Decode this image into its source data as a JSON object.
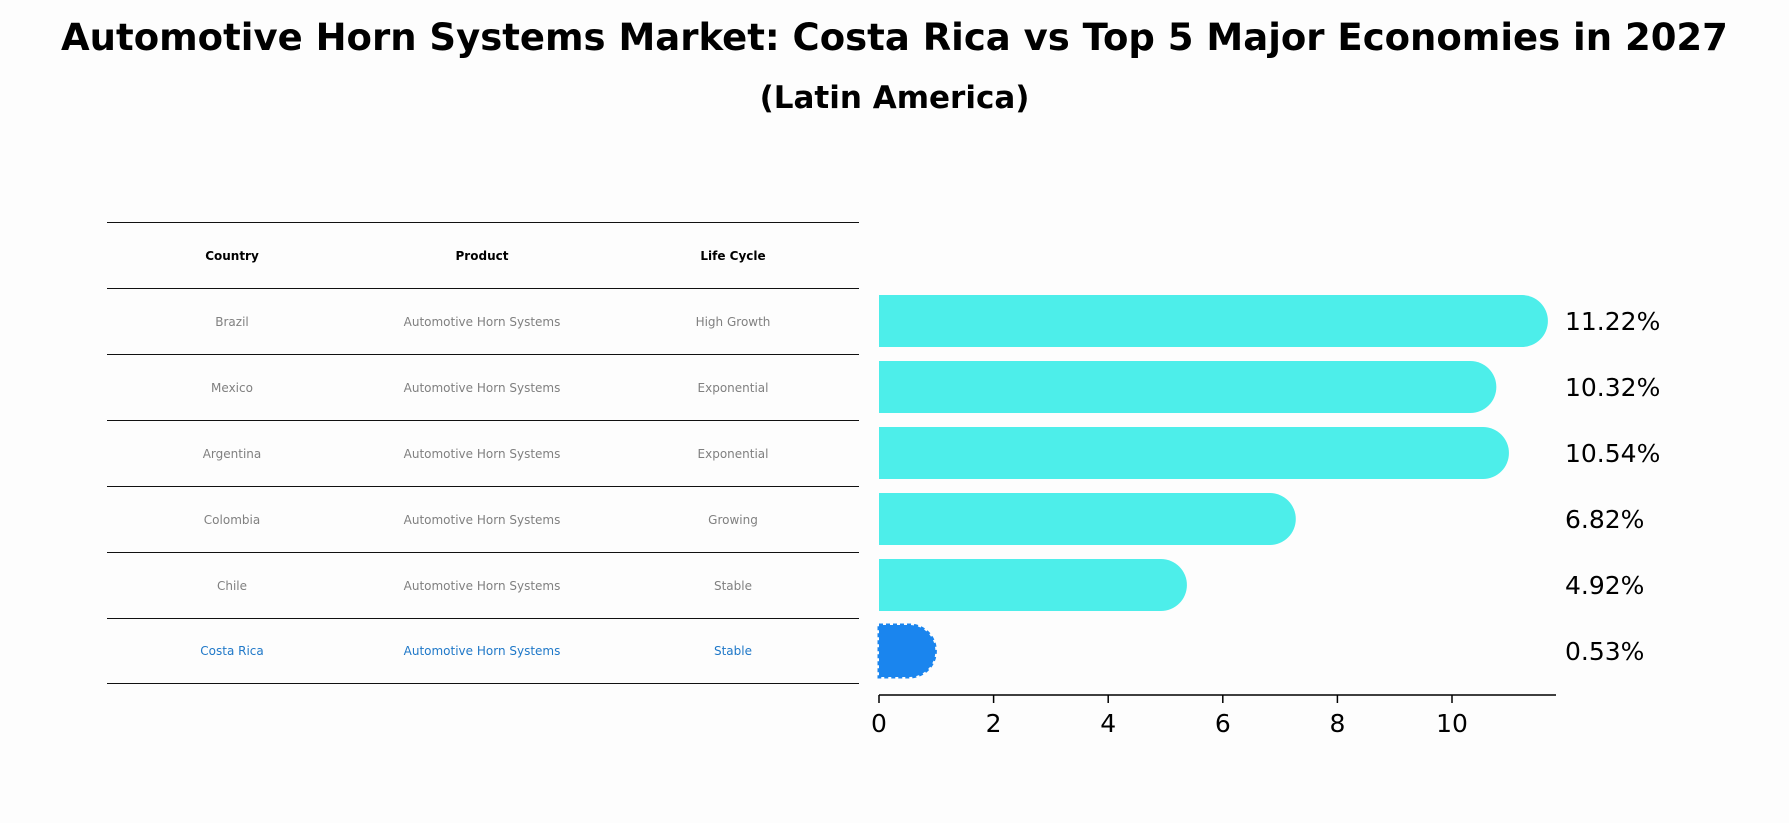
{
  "title": "Automotive Horn Systems Market: Costa Rica vs Top 5 Major Economies in 2027",
  "subtitle": "(Latin America)",
  "table": {
    "headers": [
      "Country",
      "Product",
      "Life Cycle"
    ],
    "rows": [
      {
        "country": "Brazil",
        "product": "Automotive Horn Systems",
        "life_cycle": "High Growth"
      },
      {
        "country": "Mexico",
        "product": "Automotive Horn Systems",
        "life_cycle": "Exponential"
      },
      {
        "country": "Argentina",
        "product": "Automotive Horn Systems",
        "life_cycle": "Exponential"
      },
      {
        "country": "Colombia",
        "product": "Automotive Horn Systems",
        "life_cycle": "Growing"
      },
      {
        "country": "Chile",
        "product": "Automotive Horn Systems",
        "life_cycle": "Stable"
      },
      {
        "country": "Costa Rica",
        "product": "Automotive Horn Systems",
        "life_cycle": "Stable"
      }
    ]
  },
  "colors": {
    "bar": "#4deeea",
    "highlight": "#1a85ee",
    "highlight_text": "#1f78c8"
  },
  "chart_data": {
    "type": "bar",
    "orientation": "horizontal",
    "categories": [
      "Brazil",
      "Mexico",
      "Argentina",
      "Colombia",
      "Chile",
      "Costa Rica"
    ],
    "values": [
      11.22,
      10.32,
      10.54,
      6.82,
      4.92,
      0.53
    ],
    "value_labels": [
      "11.22%",
      "10.32%",
      "10.54%",
      "6.82%",
      "4.92%",
      "0.53%"
    ],
    "highlight": "Costa Rica",
    "xlim": [
      0,
      11.8
    ],
    "xticks": [
      0,
      2,
      4,
      6,
      8,
      10
    ],
    "grid": false
  }
}
